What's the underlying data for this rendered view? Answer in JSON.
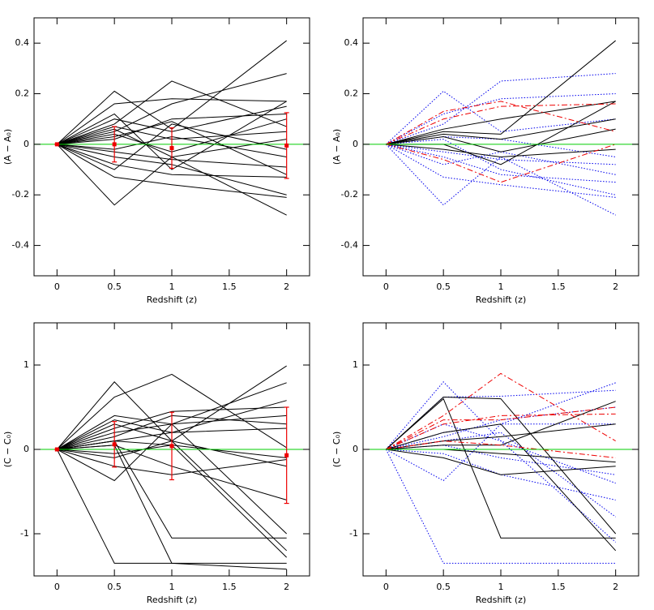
{
  "chart_data": [
    {
      "type": "line",
      "xlabel": "Redshift (z)",
      "ylabel": "(A − A₀)",
      "x": [
        0,
        0.5,
        1,
        2
      ],
      "xlim": [
        -0.2,
        2.2
      ],
      "ylim": [
        -0.52,
        0.5
      ],
      "xticks": [
        0,
        0.5,
        1,
        1.5,
        2
      ],
      "yticks": [
        -0.4,
        -0.2,
        0,
        0.2,
        0.4
      ],
      "hline": {
        "value": 0,
        "color": "#00cc00"
      },
      "errorbars": {
        "color": "#ee0000",
        "values": [
          0,
          0,
          -0.015,
          -0.005
        ],
        "errors": [
          0,
          0.07,
          0.08,
          0.13
        ]
      },
      "series": [
        {
          "color": "#000000",
          "style": "solid",
          "values": [
            0,
            0.21,
            0.06,
            0.41
          ]
        },
        {
          "color": "#000000",
          "style": "solid",
          "values": [
            0,
            0.08,
            0.25,
            0.07
          ]
        },
        {
          "color": "#000000",
          "style": "solid",
          "values": [
            0,
            -0.24,
            -0.05,
            -0.28
          ]
        },
        {
          "color": "#000000",
          "style": "solid",
          "values": [
            0,
            0.16,
            0.18,
            0.17
          ]
        },
        {
          "color": "#000000",
          "style": "solid",
          "values": [
            0,
            0.05,
            0.16,
            0.28
          ]
        },
        {
          "color": "#000000",
          "style": "solid",
          "values": [
            0,
            -0.13,
            -0.16,
            -0.21
          ]
        },
        {
          "color": "#000000",
          "style": "solid",
          "values": [
            0,
            0.12,
            -0.1,
            0.17
          ]
        },
        {
          "color": "#000000",
          "style": "solid",
          "values": [
            0,
            0.03,
            0.09,
            -0.12
          ]
        },
        {
          "color": "#000000",
          "style": "solid",
          "values": [
            0,
            -0.05,
            -0.08,
            -0.2
          ]
        },
        {
          "color": "#000000",
          "style": "solid",
          "values": [
            0,
            0.1,
            0.05,
            0.15
          ]
        },
        {
          "color": "#000000",
          "style": "solid",
          "values": [
            0,
            -0.02,
            0.03,
            -0.05
          ]
        },
        {
          "color": "#000000",
          "style": "solid",
          "values": [
            0,
            0.04,
            -0.03,
            0.1
          ]
        },
        {
          "color": "#000000",
          "style": "solid",
          "values": [
            0,
            -0.08,
            -0.12,
            -0.13
          ]
        },
        {
          "color": "#000000",
          "style": "solid",
          "values": [
            0,
            0.07,
            0.02,
            0.05
          ]
        },
        {
          "color": "#000000",
          "style": "solid",
          "values": [
            0,
            -0.03,
            -0.06,
            -0.09
          ]
        },
        {
          "color": "#000000",
          "style": "solid",
          "values": [
            0,
            0.02,
            0.1,
            0.12
          ]
        },
        {
          "color": "#000000",
          "style": "solid",
          "values": [
            0,
            -0.1,
            0.08,
            -0.02
          ]
        },
        {
          "color": "#000000",
          "style": "solid",
          "values": [
            0,
            0.06,
            -0.05,
            0.02
          ]
        }
      ]
    },
    {
      "type": "line",
      "xlabel": "Redshift (z)",
      "ylabel": "(A − A₀)",
      "x": [
        0,
        0.5,
        1,
        2
      ],
      "xlim": [
        -0.2,
        2.2
      ],
      "ylim": [
        -0.52,
        0.5
      ],
      "xticks": [
        0,
        0.5,
        1,
        1.5,
        2
      ],
      "yticks": [
        -0.4,
        -0.2,
        0,
        0.2,
        0.4
      ],
      "hline": {
        "value": 0,
        "color": "#00cc00"
      },
      "series": [
        {
          "color": "#0000ee",
          "style": "dotted",
          "values": [
            0,
            0.21,
            0.05,
            0.1
          ]
        },
        {
          "color": "#0000ee",
          "style": "dotted",
          "values": [
            0,
            -0.24,
            -0.05,
            -0.28
          ]
        },
        {
          "color": "#0000ee",
          "style": "dotted",
          "values": [
            0,
            0.08,
            0.25,
            0.28
          ]
        },
        {
          "color": "#0000ee",
          "style": "dotted",
          "values": [
            0,
            -0.13,
            -0.16,
            -0.21
          ]
        },
        {
          "color": "#0000ee",
          "style": "dotted",
          "values": [
            0,
            0.12,
            0.18,
            0.2
          ]
        },
        {
          "color": "#0000ee",
          "style": "dotted",
          "values": [
            0,
            -0.05,
            -0.12,
            -0.15
          ]
        },
        {
          "color": "#0000ee",
          "style": "dotted",
          "values": [
            0,
            -0.08,
            -0.03,
            -0.12
          ]
        },
        {
          "color": "#0000ee",
          "style": "dotted",
          "values": [
            0,
            0.02,
            -0.1,
            -0.2
          ]
        },
        {
          "color": "#0000ee",
          "style": "dotted",
          "values": [
            0,
            -0.03,
            -0.06,
            -0.08
          ]
        },
        {
          "color": "#0000ee",
          "style": "dotted",
          "values": [
            0,
            0.03,
            0.02,
            -0.05
          ]
        },
        {
          "color": "#000000",
          "style": "solid",
          "values": [
            0,
            0.05,
            0.04,
            0.41
          ]
        },
        {
          "color": "#000000",
          "style": "solid",
          "values": [
            0,
            0.06,
            0.1,
            0.17
          ]
        },
        {
          "color": "#000000",
          "style": "solid",
          "values": [
            0,
            0.03,
            -0.03,
            0.06
          ]
        },
        {
          "color": "#000000",
          "style": "solid",
          "values": [
            0,
            -0.02,
            -0.05,
            -0.02
          ]
        },
        {
          "color": "#000000",
          "style": "solid",
          "values": [
            0,
            0.04,
            0.02,
            0.1
          ]
        },
        {
          "color": "#000000",
          "style": "solid",
          "values": [
            0,
            0,
            -0.08,
            0.17
          ]
        },
        {
          "color": "#ee0000",
          "style": "dashed",
          "values": [
            0,
            0.13,
            0.17,
            0.05
          ]
        },
        {
          "color": "#ee0000",
          "style": "dashed",
          "values": [
            0,
            -0.06,
            -0.15,
            0
          ]
        },
        {
          "color": "#ee0000",
          "style": "dashed",
          "values": [
            0,
            0.1,
            0.15,
            0.16
          ]
        }
      ]
    },
    {
      "type": "line",
      "xlabel": "Redshift (z)",
      "ylabel": "(C − C₀)",
      "x": [
        0,
        0.5,
        1,
        2
      ],
      "xlim": [
        -0.2,
        2.2
      ],
      "ylim": [
        -1.5,
        1.5
      ],
      "xticks": [
        0,
        0.5,
        1,
        1.5,
        2
      ],
      "yticks": [
        -1,
        0,
        1
      ],
      "hline": {
        "value": 0,
        "color": "#00cc00"
      },
      "errorbars": {
        "color": "#ee0000",
        "values": [
          0,
          0.06,
          0.04,
          -0.07
        ],
        "errors": [
          0,
          0.27,
          0.4,
          0.57
        ]
      },
      "series": [
        {
          "color": "#000000",
          "style": "solid",
          "values": [
            0,
            0.8,
            0.1,
            0.99
          ]
        },
        {
          "color": "#000000",
          "style": "solid",
          "values": [
            0,
            0.62,
            0.89,
            0.02
          ]
        },
        {
          "color": "#000000",
          "style": "solid",
          "values": [
            0,
            -0.37,
            0.3,
            0.79
          ]
        },
        {
          "color": "#000000",
          "style": "solid",
          "values": [
            0,
            -1.35,
            -1.35,
            -1.35
          ]
        },
        {
          "color": "#000000",
          "style": "solid",
          "values": [
            0,
            0.1,
            -1.05,
            -1.05
          ]
        },
        {
          "color": "#000000",
          "style": "solid",
          "values": [
            0,
            0.3,
            0.1,
            -1.2
          ]
        },
        {
          "color": "#000000",
          "style": "solid",
          "values": [
            0,
            0.05,
            -1.35,
            -1.42
          ]
        },
        {
          "color": "#000000",
          "style": "solid",
          "values": [
            0,
            0.4,
            0.3,
            -1
          ]
        },
        {
          "color": "#000000",
          "style": "solid",
          "values": [
            0,
            0.25,
            0.45,
            0.5
          ]
        },
        {
          "color": "#000000",
          "style": "solid",
          "values": [
            0,
            0.15,
            0.4,
            0.3
          ]
        },
        {
          "color": "#000000",
          "style": "solid",
          "values": [
            0,
            -0.1,
            0.1,
            -0.2
          ]
        },
        {
          "color": "#000000",
          "style": "solid",
          "values": [
            0,
            0.35,
            0.2,
            0.58
          ]
        },
        {
          "color": "#000000",
          "style": "solid",
          "values": [
            0,
            0.1,
            0.2,
            0.25
          ]
        },
        {
          "color": "#000000",
          "style": "solid",
          "values": [
            0,
            -0.05,
            0.05,
            -0.1
          ]
        },
        {
          "color": "#000000",
          "style": "solid",
          "values": [
            0,
            0.2,
            0.3,
            0.4
          ]
        },
        {
          "color": "#000000",
          "style": "solid",
          "values": [
            0,
            0.05,
            -0.2,
            -0.6
          ]
        },
        {
          "color": "#000000",
          "style": "solid",
          "values": [
            0,
            -0.2,
            -0.3,
            -0.12
          ]
        },
        {
          "color": "#000000",
          "style": "solid",
          "values": [
            0,
            0.1,
            0.05,
            -1.28
          ]
        }
      ]
    },
    {
      "type": "line",
      "xlabel": "Redshift (z)",
      "ylabel": "(C − C₀)",
      "x": [
        0,
        0.5,
        1,
        2
      ],
      "xlim": [
        -0.2,
        2.2
      ],
      "ylim": [
        -1.5,
        1.5
      ],
      "xticks": [
        0,
        0.5,
        1,
        1.5,
        2
      ],
      "yticks": [
        -1,
        0,
        1
      ],
      "hline": {
        "value": 0,
        "color": "#00cc00"
      },
      "series": [
        {
          "color": "#0000ee",
          "style": "dotted",
          "values": [
            0,
            0.8,
            0.1,
            -1.1
          ]
        },
        {
          "color": "#0000ee",
          "style": "dotted",
          "values": [
            0,
            -0.37,
            0.3,
            0.79
          ]
        },
        {
          "color": "#0000ee",
          "style": "dotted",
          "values": [
            0,
            -1.35,
            -1.35,
            -1.35
          ]
        },
        {
          "color": "#0000ee",
          "style": "dotted",
          "values": [
            0,
            0.62,
            0.63,
            0.7
          ]
        },
        {
          "color": "#0000ee",
          "style": "dotted",
          "values": [
            0,
            0.3,
            0.1,
            -0.4
          ]
        },
        {
          "color": "#0000ee",
          "style": "dotted",
          "values": [
            0,
            0.2,
            0.3,
            0.3
          ]
        },
        {
          "color": "#0000ee",
          "style": "dotted",
          "values": [
            0,
            0.05,
            -0.1,
            -0.3
          ]
        },
        {
          "color": "#0000ee",
          "style": "dotted",
          "values": [
            0,
            0.15,
            0.35,
            0.5
          ]
        },
        {
          "color": "#0000ee",
          "style": "dotted",
          "values": [
            0,
            -0.05,
            -0.3,
            -0.6
          ]
        },
        {
          "color": "#0000ee",
          "style": "dotted",
          "values": [
            0,
            0.1,
            0.2,
            -0.8
          ]
        },
        {
          "color": "#000000",
          "style": "solid",
          "values": [
            0,
            0.62,
            0.6,
            -1
          ]
        },
        {
          "color": "#000000",
          "style": "solid",
          "values": [
            0,
            0.6,
            -1.05,
            -1.05
          ]
        },
        {
          "color": "#000000",
          "style": "solid",
          "values": [
            0,
            0.05,
            0.05,
            0.57
          ]
        },
        {
          "color": "#000000",
          "style": "solid",
          "values": [
            0,
            -0.1,
            -0.3,
            -0.2
          ]
        },
        {
          "color": "#000000",
          "style": "solid",
          "values": [
            0,
            0.2,
            0.3,
            -1.2
          ]
        },
        {
          "color": "#000000",
          "style": "solid",
          "values": [
            0,
            0.1,
            0.15,
            0.3
          ]
        },
        {
          "color": "#000000",
          "style": "solid",
          "values": [
            0,
            0,
            -0.05,
            -0.15
          ]
        },
        {
          "color": "#ee0000",
          "style": "dashed",
          "values": [
            0,
            0.4,
            0.9,
            0.1
          ]
        },
        {
          "color": "#ee0000",
          "style": "dashed",
          "values": [
            0,
            0.3,
            0.4,
            0.42
          ]
        },
        {
          "color": "#ee0000",
          "style": "dashed",
          "values": [
            0,
            0.35,
            0.35,
            0.5
          ]
        },
        {
          "color": "#ee0000",
          "style": "dashed",
          "values": [
            0,
            0.1,
            0.05,
            -0.1
          ]
        }
      ]
    }
  ]
}
